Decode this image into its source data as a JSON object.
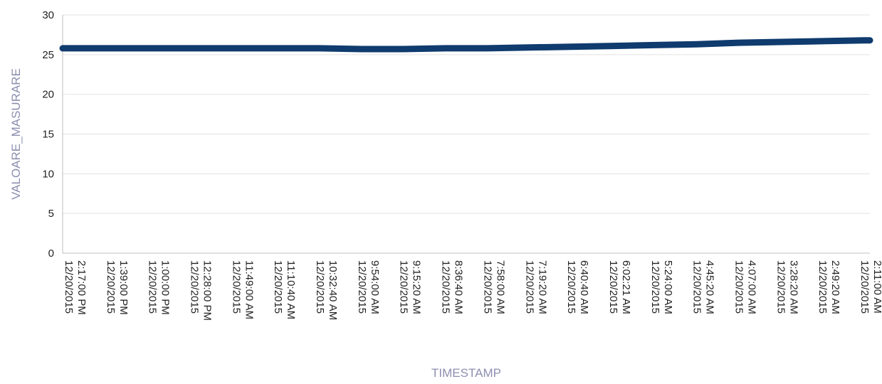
{
  "chart_data": {
    "type": "line",
    "xlabel": "TIMESTAMP",
    "ylabel": "VALOARE_MASURARE",
    "ylim": [
      0,
      30
    ],
    "yticks": [
      "0",
      "5",
      "10",
      "15",
      "20",
      "25",
      "30"
    ],
    "grid": true,
    "line_color": "#0f3b6e",
    "x": [
      "12/20/2015 2:17:00 PM",
      "12/20/2015 1:39:00 PM",
      "12/20/2015 1:00:00 PM",
      "12/20/2015 12:28:00 PM",
      "12/20/2015 11:49:00 AM",
      "12/20/2015 11:10:40 AM",
      "12/20/2015 10:32:40 AM",
      "12/20/2015 9:54:00 AM",
      "12/20/2015 9:15:20 AM",
      "12/20/2015 8:36:40 AM",
      "12/20/2015 7:58:00 AM",
      "12/20/2015 7:19:20 AM",
      "12/20/2015 6:40:40 AM",
      "12/20/2015 6:02:21 AM",
      "12/20/2015 5:24:00 AM",
      "12/20/2015 4:45:20 AM",
      "12/20/2015 4:07:00 AM",
      "12/20/2015 3:28:20 AM",
      "12/20/2015 2:49:20 AM",
      "12/20/2015 2:11:00 AM"
    ],
    "tick_label_lines": [
      [
        "12/20/2015",
        "2:17:00 PM"
      ],
      [
        "12/20/2015",
        "1:39:00 PM"
      ],
      [
        "12/20/2015",
        "1:00:00 PM"
      ],
      [
        "12/20/2015",
        "12:28:00 PM"
      ],
      [
        "12/20/2015",
        "11:49:00 AM"
      ],
      [
        "12/20/2015",
        "11:10:40 AM"
      ],
      [
        "12/20/2015",
        "10:32:40 AM"
      ],
      [
        "12/20/2015",
        "9:54:00 AM"
      ],
      [
        "12/20/2015",
        "9:15:20 AM"
      ],
      [
        "12/20/2015",
        "8:36:40 AM"
      ],
      [
        "12/20/2015",
        "7:58:00 AM"
      ],
      [
        "12/20/2015",
        "7:19:20 AM"
      ],
      [
        "12/20/2015",
        "6:40:40 AM"
      ],
      [
        "12/20/2015",
        "6:02:21 AM"
      ],
      [
        "12/20/2015",
        "5:24:00 AM"
      ],
      [
        "12/20/2015",
        "4:45:20 AM"
      ],
      [
        "12/20/2015",
        "4:07:00 AM"
      ],
      [
        "12/20/2015",
        "3:28:20 AM"
      ],
      [
        "12/20/2015",
        "2:49:20 AM"
      ],
      [
        "12/20/2015",
        "2:11:00 AM"
      ]
    ],
    "series": [
      {
        "values": [
          25.8,
          25.8,
          25.8,
          25.8,
          25.8,
          25.8,
          25.8,
          25.7,
          25.7,
          25.8,
          25.8,
          25.9,
          26.0,
          26.1,
          26.2,
          26.3,
          26.5,
          26.6,
          26.7,
          26.8
        ]
      }
    ]
  }
}
